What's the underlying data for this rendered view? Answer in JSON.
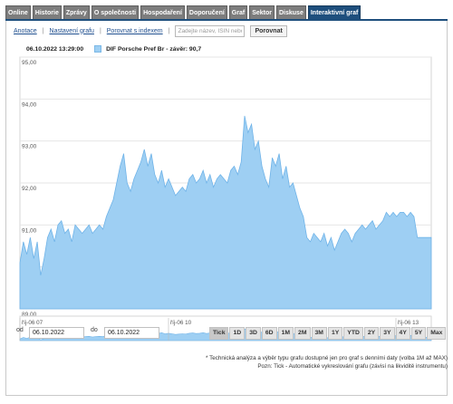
{
  "tabs": [
    {
      "label": "Online",
      "name": "tab-online"
    },
    {
      "label": "Historie",
      "name": "tab-historie"
    },
    {
      "label": "Zprávy",
      "name": "tab-zpravy"
    },
    {
      "label": "O společnosti",
      "name": "tab-o-spolecnosti"
    },
    {
      "label": "Hospodaření",
      "name": "tab-hospodareni"
    },
    {
      "label": "Doporučení",
      "name": "tab-doporuceni"
    },
    {
      "label": "Graf",
      "name": "tab-graf"
    },
    {
      "label": "Sektor",
      "name": "tab-sektor"
    },
    {
      "label": "Diskuse",
      "name": "tab-diskuse"
    },
    {
      "label": "Interaktivní graf",
      "name": "tab-interaktivni-graf",
      "active": true
    }
  ],
  "toolbar": {
    "analysis_link": "Anotace",
    "settings_link": "Nastavení grafu",
    "compare_index_link": "Porovnat s indexem",
    "search_placeholder": "Zadejte název, ISIN nebo",
    "compare_button": "Porovnat"
  },
  "legend": {
    "datetime": "06.10.2022 13:29:00",
    "series_label": "DIF Porsche Pref Br - závěr: 90,7",
    "series_color": "#9ecff3"
  },
  "navigator": {
    "labels": [
      "říj-06 07",
      "říj-06 10",
      "říj-06 13"
    ]
  },
  "range": {
    "from_label": "od",
    "from_value": "06.10.2022",
    "to_label": "do",
    "to_value": "06.10.2022",
    "buttons": [
      "Tick",
      "1D",
      "3D",
      "6D",
      "1M",
      "2M",
      "3M",
      "1Y",
      "YTD",
      "2Y",
      "3Y",
      "4Y",
      "5Y",
      "Max"
    ],
    "active": "Tick"
  },
  "notes": [
    "* Technická analýza a výběr typu grafu dostupné jen pro graf s denními daty (volba 1M až MAX)",
    "Pozn: Tick - Automatické vykreslování grafu (závisí na likviditě instrumentu)"
  ],
  "chart_data": {
    "type": "area",
    "series": [
      {
        "name": "DIF Porsche Pref Br - závěr: 90,7"
      }
    ],
    "ylim": [
      89.0,
      95.0
    ],
    "yticks": [
      "95,00",
      "94,00",
      "93,00",
      "92,00",
      "91,00",
      "90,00",
      "89,00"
    ],
    "y_tick_values": [
      95,
      94,
      93,
      92,
      91,
      90,
      89
    ],
    "color": "#9ecff3",
    "line_color": "#6fb3e8",
    "grid": true,
    "values": [
      90.1,
      90.6,
      90.3,
      90.7,
      90.2,
      90.6,
      89.8,
      90.2,
      90.7,
      90.9,
      90.6,
      91.0,
      91.1,
      90.8,
      90.9,
      90.6,
      91.0,
      90.9,
      90.8,
      90.9,
      91.0,
      90.8,
      90.9,
      91.0,
      90.9,
      91.2,
      91.4,
      91.6,
      92.0,
      92.4,
      92.7,
      92.0,
      91.8,
      92.1,
      92.3,
      92.5,
      92.8,
      92.4,
      92.7,
      92.2,
      92.0,
      92.3,
      91.9,
      92.1,
      91.9,
      91.7,
      91.8,
      91.9,
      91.8,
      92.1,
      92.2,
      92.0,
      92.1,
      92.3,
      92.0,
      92.2,
      91.9,
      92.1,
      92.2,
      92.1,
      92.0,
      92.3,
      92.4,
      92.2,
      92.5,
      93.6,
      93.2,
      93.4,
      92.8,
      93.0,
      92.4,
      92.1,
      91.9,
      92.6,
      92.4,
      92.7,
      92.1,
      92.4,
      91.9,
      92.0,
      91.7,
      91.4,
      91.2,
      90.7,
      90.6,
      90.8,
      90.7,
      90.6,
      90.8,
      90.5,
      90.7,
      90.4,
      90.6,
      90.8,
      90.9,
      90.8,
      90.6,
      90.8,
      90.9,
      91.0,
      90.9,
      91.0,
      91.1,
      90.9,
      91.0,
      91.1,
      91.3,
      91.2,
      91.3,
      91.2,
      91.3,
      91.3,
      91.2,
      91.3,
      91.2,
      90.7,
      90.7,
      90.7,
      90.7,
      90.7
    ]
  }
}
